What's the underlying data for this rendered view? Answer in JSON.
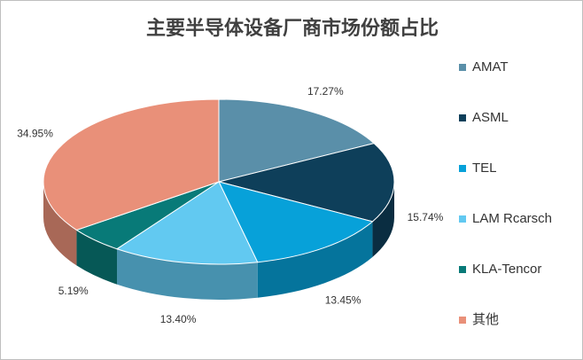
{
  "chart_data": {
    "type": "pie3d",
    "title": "主要半导体设备厂商市场份额占比",
    "categories": [
      "AMAT",
      "ASML",
      "TEL",
      "LAM Rcarsch",
      "KLA-Tencor",
      "其他"
    ],
    "values": [
      17.27,
      15.74,
      13.45,
      13.4,
      5.19,
      34.95
    ],
    "value_labels": [
      "17.27%",
      "15.74%",
      "13.45%",
      "13.40%",
      "5.19%",
      "34.95%"
    ],
    "colors": [
      "#5a8fa9",
      "#0e3f5a",
      "#07a1d9",
      "#62c9f1",
      "#087a78",
      "#e99079"
    ],
    "legend": "right"
  }
}
